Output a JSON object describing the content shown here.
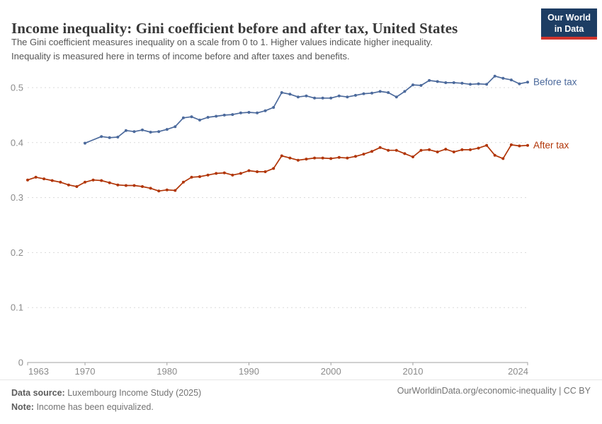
{
  "header": {
    "title": "Income inequality: Gini coefficient before and after tax, United States",
    "subtitle_lines": [
      "The Gini coefficient measures inequality on a scale from 0 to 1. Higher values indicate higher inequality.",
      "Inequality is measured here in terms of income before and after taxes and benefits."
    ],
    "logo": {
      "line1": "Our World",
      "line2": "in Data",
      "bg_color": "#1d3d63",
      "accent_color": "#d0342c"
    }
  },
  "chart_data": {
    "type": "line",
    "title": "Income inequality: Gini coefficient before and after tax, United States",
    "xlabel": "",
    "ylabel": "",
    "xlim": [
      1963,
      2024
    ],
    "ylim": [
      0,
      0.55
    ],
    "xticks": [
      1963,
      1970,
      1980,
      1990,
      2000,
      2010,
      2024
    ],
    "yticks": [
      0,
      0.1,
      0.2,
      0.3,
      0.4,
      0.5
    ],
    "grid": "horizontal-dashed",
    "legend": "end-of-line-labels",
    "grid_color": "#dadada",
    "axis_color": "#a1a1a1",
    "tick_label_color": "#8b8b8b",
    "series": [
      {
        "id": "before-tax",
        "name": "Before tax",
        "color": "#4c6a9c",
        "points": [
          [
            1970,
            0.399
          ],
          [
            1972,
            0.411
          ],
          [
            1973,
            0.409
          ],
          [
            1974,
            0.41
          ],
          [
            1975,
            0.422
          ],
          [
            1976,
            0.42
          ],
          [
            1977,
            0.423
          ],
          [
            1978,
            0.419
          ],
          [
            1979,
            0.42
          ],
          [
            1980,
            0.424
          ],
          [
            1981,
            0.429
          ],
          [
            1982,
            0.445
          ],
          [
            1983,
            0.447
          ],
          [
            1984,
            0.441
          ],
          [
            1985,
            0.446
          ],
          [
            1986,
            0.448
          ],
          [
            1987,
            0.45
          ],
          [
            1988,
            0.451
          ],
          [
            1989,
            0.454
          ],
          [
            1990,
            0.455
          ],
          [
            1991,
            0.454
          ],
          [
            1992,
            0.458
          ],
          [
            1993,
            0.464
          ],
          [
            1994,
            0.491
          ],
          [
            1995,
            0.488
          ],
          [
            1996,
            0.483
          ],
          [
            1997,
            0.485
          ],
          [
            1998,
            0.481
          ],
          [
            1999,
            0.481
          ],
          [
            2000,
            0.481
          ],
          [
            2001,
            0.485
          ],
          [
            2002,
            0.483
          ],
          [
            2003,
            0.486
          ],
          [
            2004,
            0.489
          ],
          [
            2005,
            0.49
          ],
          [
            2006,
            0.493
          ],
          [
            2007,
            0.491
          ],
          [
            2008,
            0.483
          ],
          [
            2009,
            0.493
          ],
          [
            2010,
            0.505
          ],
          [
            2011,
            0.504
          ],
          [
            2012,
            0.513
          ],
          [
            2013,
            0.511
          ],
          [
            2014,
            0.509
          ],
          [
            2015,
            0.509
          ],
          [
            2016,
            0.508
          ],
          [
            2017,
            0.506
          ],
          [
            2018,
            0.507
          ],
          [
            2019,
            0.506
          ],
          [
            2020,
            0.521
          ],
          [
            2021,
            0.517
          ],
          [
            2022,
            0.514
          ],
          [
            2023,
            0.507
          ],
          [
            2024,
            0.51
          ]
        ]
      },
      {
        "id": "after-tax",
        "name": "After tax",
        "color": "#b13507",
        "points": [
          [
            1963,
            0.332
          ],
          [
            1964,
            0.337
          ],
          [
            1965,
            0.334
          ],
          [
            1966,
            0.331
          ],
          [
            1967,
            0.328
          ],
          [
            1968,
            0.323
          ],
          [
            1969,
            0.32
          ],
          [
            1970,
            0.328
          ],
          [
            1971,
            0.332
          ],
          [
            1972,
            0.331
          ],
          [
            1973,
            0.327
          ],
          [
            1974,
            0.323
          ],
          [
            1975,
            0.322
          ],
          [
            1976,
            0.322
          ],
          [
            1977,
            0.32
          ],
          [
            1978,
            0.317
          ],
          [
            1979,
            0.312
          ],
          [
            1980,
            0.314
          ],
          [
            1981,
            0.313
          ],
          [
            1982,
            0.328
          ],
          [
            1983,
            0.337
          ],
          [
            1984,
            0.338
          ],
          [
            1985,
            0.341
          ],
          [
            1986,
            0.344
          ],
          [
            1987,
            0.345
          ],
          [
            1988,
            0.341
          ],
          [
            1989,
            0.344
          ],
          [
            1990,
            0.349
          ],
          [
            1991,
            0.347
          ],
          [
            1992,
            0.347
          ],
          [
            1993,
            0.353
          ],
          [
            1994,
            0.376
          ],
          [
            1995,
            0.372
          ],
          [
            1996,
            0.368
          ],
          [
            1997,
            0.37
          ],
          [
            1998,
            0.372
          ],
          [
            1999,
            0.372
          ],
          [
            2000,
            0.371
          ],
          [
            2001,
            0.373
          ],
          [
            2002,
            0.372
          ],
          [
            2003,
            0.375
          ],
          [
            2004,
            0.379
          ],
          [
            2005,
            0.384
          ],
          [
            2006,
            0.391
          ],
          [
            2007,
            0.386
          ],
          [
            2008,
            0.386
          ],
          [
            2009,
            0.38
          ],
          [
            2010,
            0.374
          ],
          [
            2011,
            0.386
          ],
          [
            2012,
            0.387
          ],
          [
            2013,
            0.383
          ],
          [
            2014,
            0.388
          ],
          [
            2015,
            0.383
          ],
          [
            2016,
            0.387
          ],
          [
            2017,
            0.387
          ],
          [
            2018,
            0.39
          ],
          [
            2019,
            0.395
          ],
          [
            2020,
            0.377
          ],
          [
            2021,
            0.371
          ],
          [
            2022,
            0.396
          ],
          [
            2023,
            0.394
          ],
          [
            2024,
            0.395
          ]
        ]
      }
    ]
  },
  "footer": {
    "source_label": "Data source:",
    "source_value": "Luxembourg Income Study (2025)",
    "note_label": "Note:",
    "note_value": "Income has been equivalized.",
    "link": "OurWorldinData.org/economic-inequality | CC BY"
  }
}
